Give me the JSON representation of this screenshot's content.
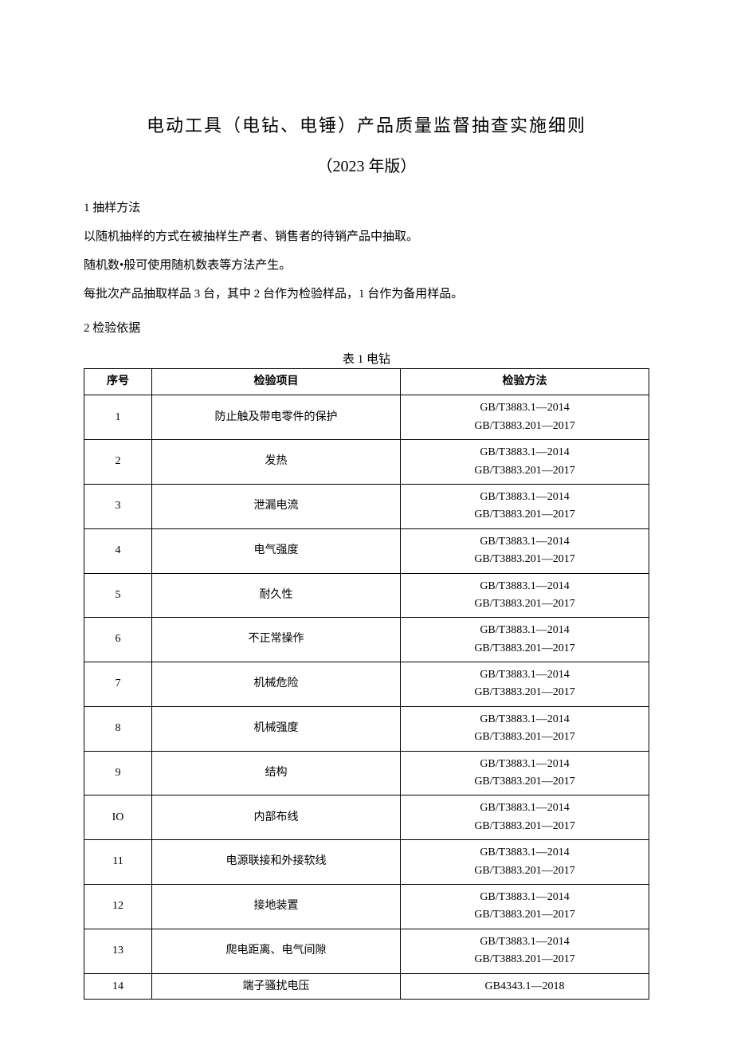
{
  "title": "电动工具（电钻、电锤）产品质量监督抽查实施细则",
  "subtitle": "（2023 年版）",
  "section1": {
    "heading": "1 抽样方法",
    "p1": "以随机抽样的方式在被抽样生产者、销售者的待销产品中抽取。",
    "p2": "随机数•般可使用随机数表等方法产生。",
    "p3": "每批次产品抽取样品 3 台，其中 2 台作为检验样品，1 台作为备用样品。"
  },
  "section2": {
    "heading": "2 检验依据"
  },
  "table1": {
    "caption": "表 1 电钻",
    "headers": {
      "col1": "序号",
      "col2": "检验项目",
      "col3": "检验方法"
    },
    "rows": [
      {
        "num": "1",
        "item": "防止触及带电零件的保护",
        "methods": [
          "GB/T3883.1—2014",
          "GB/T3883.201—2017"
        ]
      },
      {
        "num": "2",
        "item": "发热",
        "methods": [
          "GB/T3883.1—2014",
          "GB/T3883.201—2017"
        ]
      },
      {
        "num": "3",
        "item": "泄漏电流",
        "methods": [
          "GB/T3883.1—2014",
          "GB/T3883.201—2017"
        ]
      },
      {
        "num": "4",
        "item": "电气强度",
        "methods": [
          "GB/T3883.1—2014",
          "GB/T3883.201—2017"
        ]
      },
      {
        "num": "5",
        "item": "耐久性",
        "methods": [
          "GB/T3883.1—2014",
          "GB/T3883.201—2017"
        ]
      },
      {
        "num": "6",
        "item": "不正常操作",
        "methods": [
          "GB/T3883.1—2014",
          "GB/T3883.201—2017"
        ]
      },
      {
        "num": "7",
        "item": "机械危险",
        "methods": [
          "GB/T3883.1—2014",
          "GB/T3883.201—2017"
        ]
      },
      {
        "num": "8",
        "item": "机械强度",
        "methods": [
          "GB/T3883.1—2014",
          "GB/T3883.201—2017"
        ]
      },
      {
        "num": "9",
        "item": "结构",
        "methods": [
          "GB/T3883.1—2014",
          "GB/T3883.201—2017"
        ]
      },
      {
        "num": "IO",
        "item": "内部布线",
        "methods": [
          "GB/T3883.1—2014",
          "GB/T3883.201—2017"
        ]
      },
      {
        "num": "11",
        "item": "电源联接和外接软线",
        "methods": [
          "GB/T3883.1—2014",
          "GB/T3883.201—2017"
        ]
      },
      {
        "num": "12",
        "item": "接地装置",
        "methods": [
          "GB/T3883.1—2014",
          "GB/T3883.201—2017"
        ]
      },
      {
        "num": "13",
        "item": "爬电距离、电气间隙",
        "methods": [
          "GB/T3883.1—2014",
          "GB/T3883.201—2017"
        ]
      },
      {
        "num": "14",
        "item": "端子骚扰电压",
        "methods": [
          "GB4343.1—2018"
        ]
      }
    ]
  }
}
